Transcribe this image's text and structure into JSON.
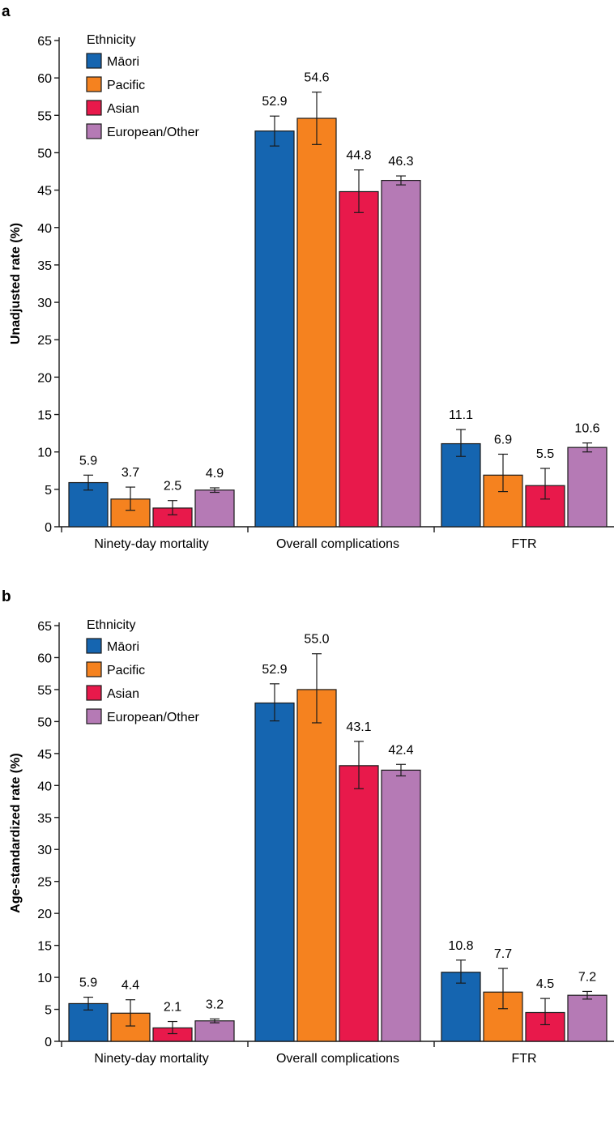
{
  "chart_data": [
    {
      "panel": "a",
      "type": "bar",
      "ylabel": "Unadjusted rate (%)",
      "ylim": [
        0,
        65
      ],
      "yticks": [
        0,
        5,
        10,
        15,
        20,
        25,
        30,
        35,
        40,
        45,
        50,
        55,
        60,
        65
      ],
      "legend_title": "Ethnicity",
      "legend_position": "top-left",
      "groups": [
        "Ninety-day mortality",
        "Overall complications",
        "FTR"
      ],
      "series": [
        {
          "name": "Māori",
          "color": "#1565b0",
          "values": [
            5.9,
            52.9,
            11.1
          ],
          "labels": [
            "5.9",
            "52.9",
            "11.1"
          ],
          "err_low": [
            4.9,
            50.9,
            9.4
          ],
          "err_high": [
            6.9,
            54.9,
            13.0
          ]
        },
        {
          "name": "Pacific",
          "color": "#f5821f",
          "values": [
            3.7,
            54.6,
            6.9
          ],
          "labels": [
            "3.7",
            "54.6",
            "6.9"
          ],
          "err_low": [
            2.2,
            51.1,
            4.7
          ],
          "err_high": [
            5.3,
            58.1,
            9.7
          ]
        },
        {
          "name": "Asian",
          "color": "#e8194b",
          "values": [
            2.5,
            44.8,
            5.5
          ],
          "labels": [
            "2.5",
            "44.8",
            "5.5"
          ],
          "err_low": [
            1.6,
            42.0,
            3.7
          ],
          "err_high": [
            3.5,
            47.7,
            7.8
          ]
        },
        {
          "name": "European/Other",
          "color": "#b57ab5",
          "values": [
            4.9,
            46.3,
            10.6
          ],
          "labels": [
            "4.9",
            "46.3",
            "10.6"
          ],
          "err_low": [
            4.6,
            45.7,
            10.0
          ],
          "err_high": [
            5.2,
            46.9,
            11.2
          ]
        }
      ]
    },
    {
      "panel": "b",
      "type": "bar",
      "ylabel": "Age-standardized rate (%)",
      "ylim": [
        0,
        65
      ],
      "yticks": [
        0,
        5,
        10,
        15,
        20,
        25,
        30,
        35,
        40,
        45,
        50,
        55,
        60,
        65
      ],
      "legend_title": "Ethnicity",
      "legend_position": "top-left",
      "groups": [
        "Ninety-day mortality",
        "Overall complications",
        "FTR"
      ],
      "series": [
        {
          "name": "Māori",
          "color": "#1565b0",
          "values": [
            5.9,
            52.9,
            10.8
          ],
          "labels": [
            "5.9",
            "52.9",
            "10.8"
          ],
          "err_low": [
            4.9,
            50.1,
            9.1
          ],
          "err_high": [
            6.9,
            55.9,
            12.7
          ]
        },
        {
          "name": "Pacific",
          "color": "#f5821f",
          "values": [
            4.4,
            55.0,
            7.7
          ],
          "labels": [
            "4.4",
            "55.0",
            "7.7"
          ],
          "err_low": [
            2.4,
            49.8,
            5.1
          ],
          "err_high": [
            6.5,
            60.6,
            11.4
          ]
        },
        {
          "name": "Asian",
          "color": "#e8194b",
          "values": [
            2.1,
            43.1,
            4.5
          ],
          "labels": [
            "2.1",
            "43.1",
            "4.5"
          ],
          "err_low": [
            1.2,
            39.5,
            2.6
          ],
          "err_high": [
            3.1,
            46.9,
            6.7
          ]
        },
        {
          "name": "European/Other",
          "color": "#b57ab5",
          "values": [
            3.2,
            42.4,
            7.2
          ],
          "labels": [
            "3.2",
            "42.4",
            "7.2"
          ],
          "err_low": [
            2.9,
            41.5,
            6.6
          ],
          "err_high": [
            3.5,
            43.3,
            7.8
          ]
        }
      ]
    }
  ]
}
